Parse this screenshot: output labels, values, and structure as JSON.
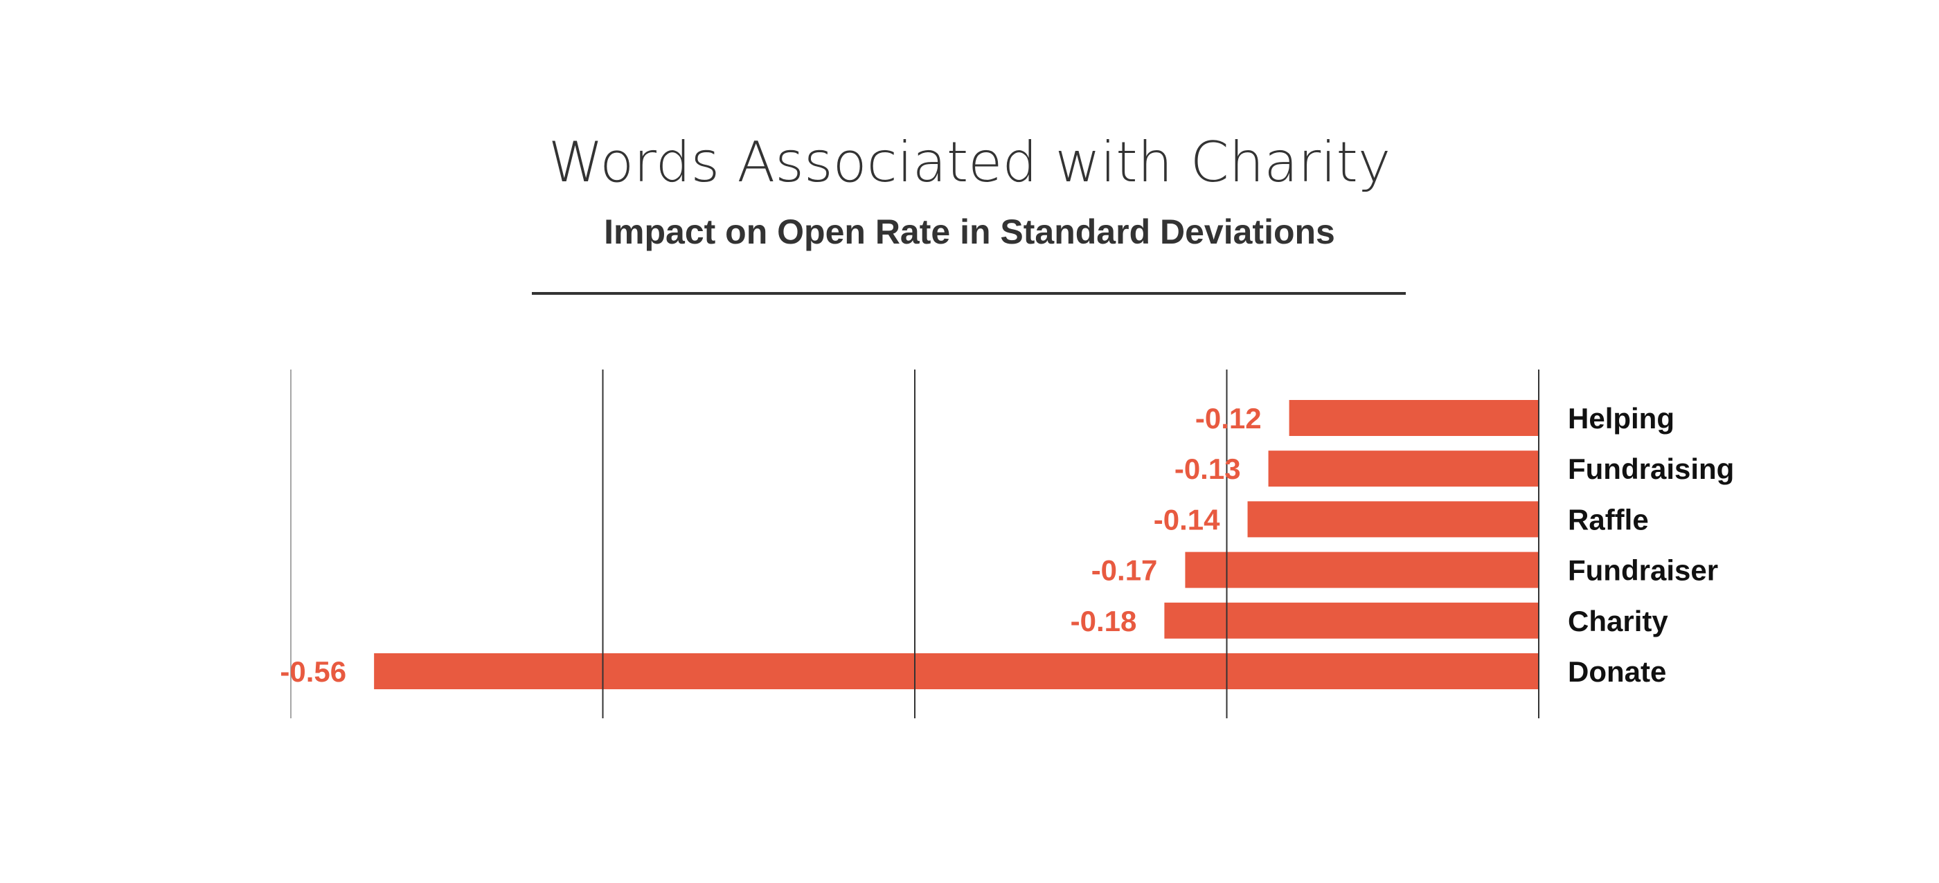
{
  "chart_data": {
    "type": "bar",
    "orientation": "horizontal",
    "title": "Words Associated with Charity",
    "subtitle": "Impact on Open Rate in Standard Deviations",
    "categories": [
      "Helping",
      "Fundraising",
      "Raffle",
      "Fundraiser",
      "Charity",
      "Donate"
    ],
    "values": [
      -0.12,
      -0.13,
      -0.14,
      -0.17,
      -0.18,
      -0.56
    ],
    "data_labels": [
      "-0.12",
      "-0.13",
      "-0.14",
      "-0.17",
      "-0.18",
      "-0.56"
    ],
    "xlim": [
      -0.6,
      0
    ],
    "gridlines": [
      -0.6,
      -0.45,
      -0.3,
      -0.15,
      0
    ],
    "grid": true,
    "legend": "none",
    "bar_color": "#E85A40",
    "label_color": "#E85A40",
    "category_label_color": "#111111",
    "title_color": "#333333"
  }
}
